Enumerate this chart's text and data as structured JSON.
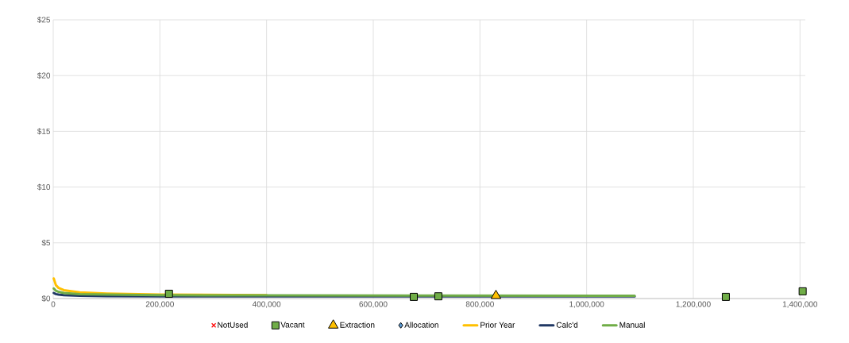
{
  "chart_data": {
    "type": "scatter",
    "xlim": [
      0,
      1410000
    ],
    "ylim": [
      0,
      25
    ],
    "xticks": [
      0,
      {
        "value": 200000,
        "label": "200,000"
      },
      {
        "value": 400000,
        "label": "400,000"
      },
      {
        "value": 600000,
        "label": "600,000"
      },
      {
        "value": 800000,
        "label": "800,000"
      },
      {
        "value": 1000000,
        "label": "1,000,000"
      },
      {
        "value": 1200000,
        "label": "1,200,000"
      },
      {
        "value": 1400000,
        "label": "1,400,000"
      }
    ],
    "yticks": [
      {
        "value": 0,
        "label": "$0"
      },
      {
        "value": 5,
        "label": "$5"
      },
      {
        "value": 10,
        "label": "$10"
      },
      {
        "value": 15,
        "label": "$15"
      },
      {
        "value": 20,
        "label": "$20"
      },
      {
        "value": 25,
        "label": "$25"
      }
    ],
    "grid": true,
    "legend": "bottom",
    "series": [
      {
        "name": "NotUsed",
        "marker": "cross",
        "color": "#ff0000"
      },
      {
        "name": "Vacant",
        "marker": "square",
        "color": "#70ad47",
        "x": [
          217000,
          676000,
          722000,
          1261000,
          1405000
        ],
        "values": [
          0.43,
          0.15,
          0.2,
          0.15,
          0.65
        ]
      },
      {
        "name": "Extraction",
        "marker": "triangle",
        "color": "#ffc000",
        "x": [
          830000
        ],
        "values": [
          0.25
        ]
      },
      {
        "name": "Allocation",
        "marker": "diamond",
        "color": "#5b9bd5"
      },
      {
        "name": "Prior Year",
        "type": "line",
        "marker": "none",
        "color": "#ffc000",
        "x": [
          1000,
          5000,
          10000,
          20000,
          50000,
          100000,
          200000,
          400000
        ],
        "values": [
          1.8,
          1.2,
          0.95,
          0.75,
          0.55,
          0.45,
          0.35,
          0.3
        ]
      },
      {
        "name": "Calc'd",
        "type": "line",
        "marker": "none",
        "color": "#203864",
        "x": [
          1000,
          5000,
          10000,
          20000,
          50000,
          100000,
          200000,
          400000,
          700000,
          1090000
        ],
        "values": [
          0.5,
          0.4,
          0.35,
          0.3,
          0.25,
          0.22,
          0.2,
          0.2,
          0.2,
          0.2
        ]
      },
      {
        "name": "Manual",
        "type": "line",
        "marker": "none",
        "color": "#70ad47",
        "x": [
          1000,
          5000,
          10000,
          20000,
          50000,
          100000,
          200000,
          400000,
          700000,
          1090000
        ],
        "values": [
          0.9,
          0.7,
          0.6,
          0.5,
          0.4,
          0.35,
          0.3,
          0.28,
          0.26,
          0.25
        ]
      }
    ]
  }
}
